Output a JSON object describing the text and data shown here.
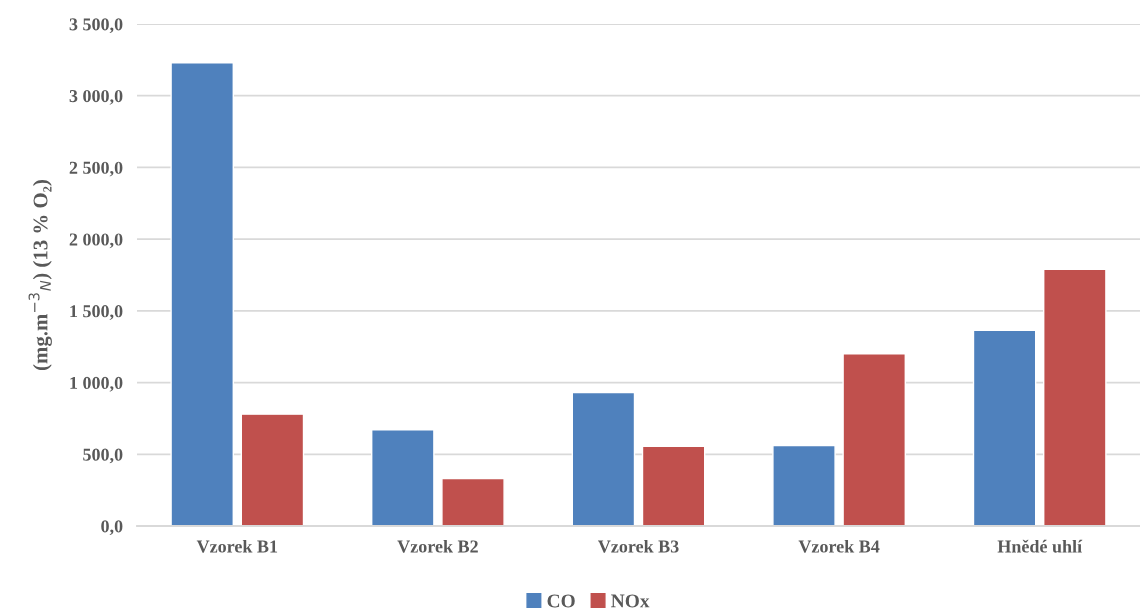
{
  "chart_data": {
    "type": "bar",
    "categories": [
      "Vzorek B1",
      "Vzorek B2",
      "Vzorek B3",
      "Vzorek B4",
      "Hnědé uhlí"
    ],
    "series": [
      {
        "name": "CO",
        "color": "#4f81bd",
        "values": [
          3230,
          670,
          930,
          560,
          1365
        ]
      },
      {
        "name": "NOx",
        "color": "#c0504d",
        "values": [
          780,
          330,
          555,
          1200,
          1790
        ]
      }
    ],
    "ylabel": "(mg.m$^{−3}$$_{N}$) (13 % O₂)",
    "ylim": [
      0,
      3500
    ],
    "yticks": [
      {
        "value": 0,
        "label": "0,0"
      },
      {
        "value": 500,
        "label": "500,0"
      },
      {
        "value": 1000,
        "label": "1 000,0"
      },
      {
        "value": 1500,
        "label": "1 500,0"
      },
      {
        "value": 2000,
        "label": "2 000,0"
      },
      {
        "value": 2500,
        "label": "2 500,0"
      },
      {
        "value": 3000,
        "label": "3 000,0"
      },
      {
        "value": 3500,
        "label": "3 500,0"
      }
    ],
    "grid": "y",
    "legend": "bottom"
  }
}
